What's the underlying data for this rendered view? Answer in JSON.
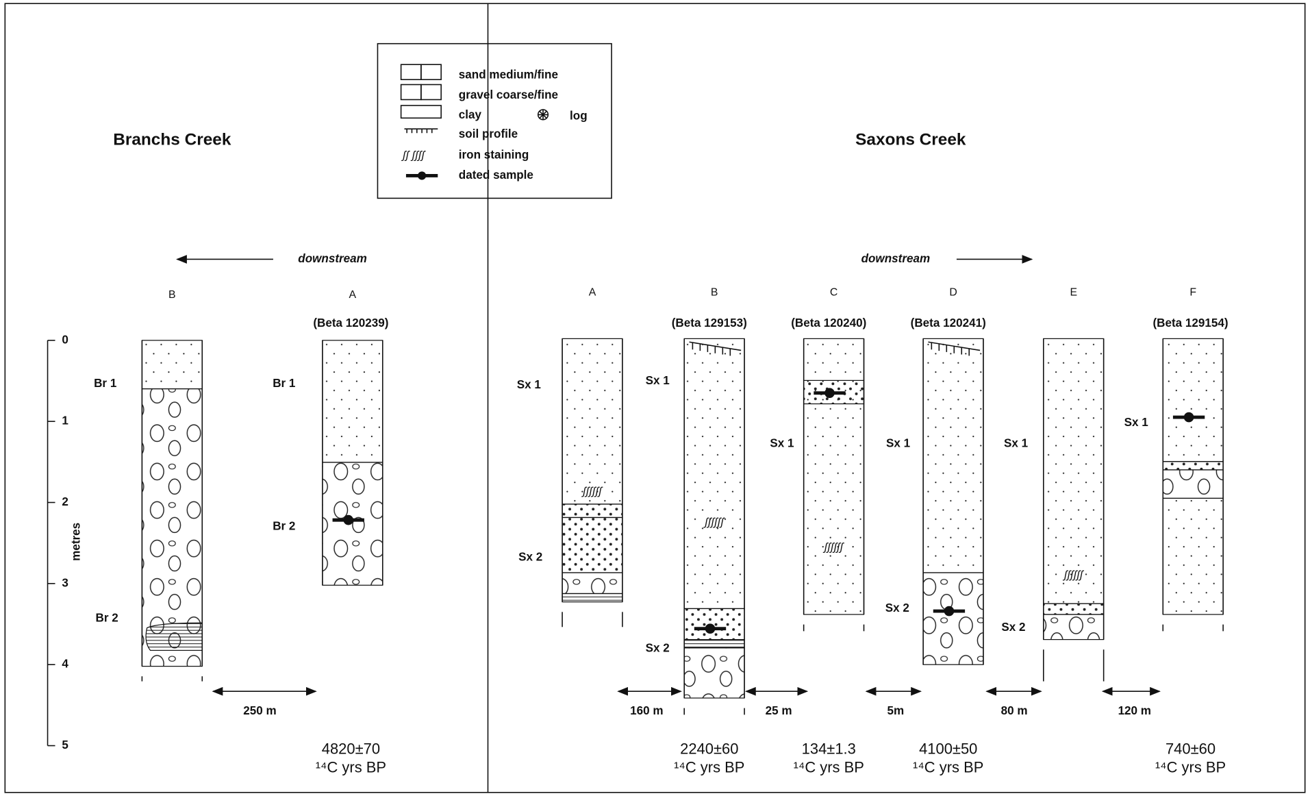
{
  "legend": {
    "items": [
      "sand medium/fine",
      "gravel coarse/fine",
      "clay",
      "soil profile",
      "iron staining",
      "dated sample"
    ],
    "log": "log"
  },
  "depth_axis": {
    "label": "metres",
    "ticks": [
      "0",
      "1",
      "2",
      "3",
      "4",
      "5"
    ]
  },
  "panels": [
    {
      "title": "Branchs Creek",
      "direction": "downstream",
      "columns": [
        {
          "label": "B",
          "units": [
            "Br 1",
            "Br 2"
          ]
        },
        {
          "label": "A",
          "sample": "(Beta 120239)",
          "units": [
            "Br 1",
            "Br 2"
          ],
          "age": "4820±70",
          "age_unit": "¹⁴C yrs BP"
        }
      ],
      "distances": [
        "250  m"
      ]
    },
    {
      "title": "Saxons Creek",
      "direction": "downstream",
      "columns": [
        {
          "label": "A",
          "units": [
            "Sx 1",
            "Sx 2"
          ]
        },
        {
          "label": "B",
          "sample": "(Beta 129153)",
          "units": [
            "Sx 1",
            "Sx 2"
          ],
          "age": "2240±60",
          "age_unit": "¹⁴C yrs BP"
        },
        {
          "label": "C",
          "sample": "(Beta 120240)",
          "units": [
            "Sx 1"
          ],
          "age": "134±1.3",
          "age_unit": "¹⁴C yrs BP"
        },
        {
          "label": "D",
          "sample": "(Beta 120241)",
          "units": [
            "Sx 1",
            "Sx 2"
          ],
          "age": "4100±50",
          "age_unit": "¹⁴C yrs BP"
        },
        {
          "label": "E",
          "units": [
            "Sx 1",
            "Sx 2"
          ]
        },
        {
          "label": "F",
          "sample": "(Beta 129154)",
          "units": [
            "Sx 1"
          ],
          "age": "740±60",
          "age_unit": "¹⁴C yrs BP"
        }
      ],
      "distances": [
        "160  m",
        "25 m",
        "5m",
        "80 m",
        "120 m"
      ]
    }
  ]
}
